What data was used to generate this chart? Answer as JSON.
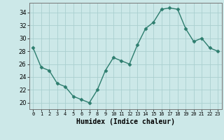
{
  "x": [
    0,
    1,
    2,
    3,
    4,
    5,
    6,
    7,
    8,
    9,
    10,
    11,
    12,
    13,
    14,
    15,
    16,
    17,
    18,
    19,
    20,
    21,
    22,
    23
  ],
  "y": [
    28.5,
    25.5,
    25.0,
    23.0,
    22.5,
    21.0,
    20.5,
    20.0,
    22.0,
    25.0,
    27.0,
    26.5,
    26.0,
    29.0,
    31.5,
    32.5,
    34.5,
    34.7,
    34.5,
    31.5,
    29.5,
    30.0,
    28.5,
    28.0
  ],
  "xlabel": "Humidex (Indice chaleur)",
  "xlim": [
    -0.5,
    23.5
  ],
  "ylim": [
    19.0,
    35.5
  ],
  "yticks": [
    20,
    22,
    24,
    26,
    28,
    30,
    32,
    34
  ],
  "xticks": [
    0,
    1,
    2,
    3,
    4,
    5,
    6,
    7,
    8,
    9,
    10,
    11,
    12,
    13,
    14,
    15,
    16,
    17,
    18,
    19,
    20,
    21,
    22,
    23
  ],
  "line_color": "#2d7d6e",
  "marker": "D",
  "marker_size": 2.5,
  "bg_color": "#cce8e8",
  "grid_color": "#aacfcf",
  "spine_color": "#777777"
}
